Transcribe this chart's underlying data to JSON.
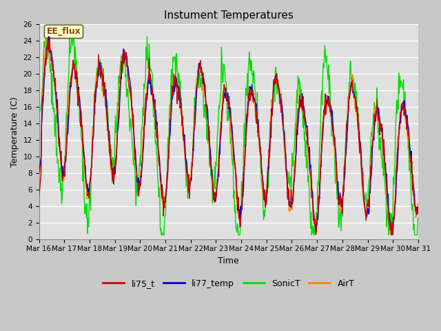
{
  "title": "Instument Temperatures",
  "xlabel": "Time",
  "ylabel": "Temperature (C)",
  "ylim": [
    0,
    26
  ],
  "yticks": [
    0,
    2,
    4,
    6,
    8,
    10,
    12,
    14,
    16,
    18,
    20,
    22,
    24,
    26
  ],
  "fig_bg_color": "#c8c8c8",
  "plot_bg_color": "#e0e0e0",
  "grid_color": "white",
  "annotation_text": "EE_flux",
  "annotation_bg": "#ffffcc",
  "annotation_border": "#8b4513",
  "legend_entries": [
    "li75_t",
    "li77_temp",
    "SonicT",
    "AirT"
  ],
  "line_colors": [
    "#cc0000",
    "#0000cc",
    "#00dd00",
    "#ff8800"
  ],
  "xtick_labels": [
    "Mar 16",
    "Mar 17",
    "Mar 18",
    "Mar 19",
    "Mar 20",
    "Mar 21",
    "Mar 22",
    "Mar 23",
    "Mar 24",
    "Mar 25",
    "Mar 26",
    "Mar 27",
    "Mar 28",
    "Mar 29",
    "Mar 30",
    "Mar 31"
  ],
  "title_fontsize": 11,
  "axis_label_fontsize": 9,
  "tick_fontsize": 7.5,
  "legend_fontsize": 9
}
